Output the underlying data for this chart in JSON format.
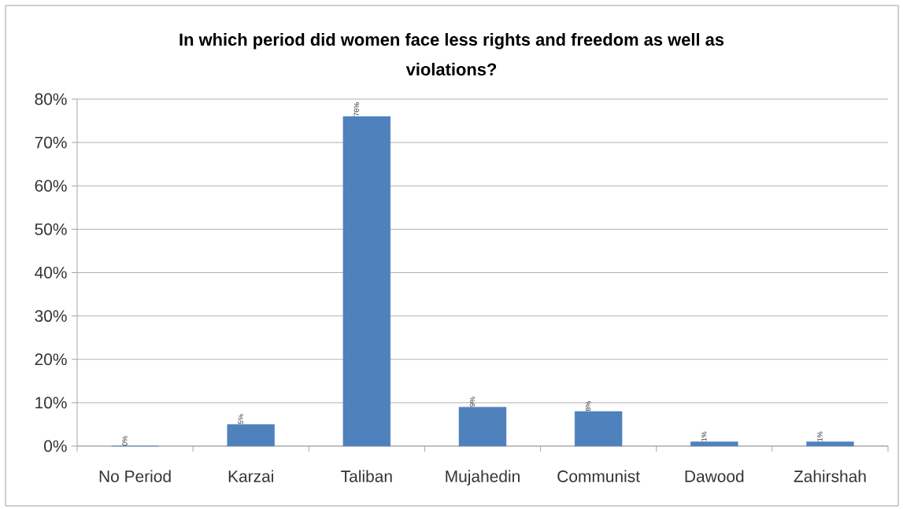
{
  "chart_data": {
    "type": "bar",
    "title": "In which period did women face less rights and freedom as well as violations?",
    "categories": [
      "No Period",
      "Karzai",
      "Taliban",
      "Mujahedin",
      "Communist",
      "Dawood",
      "Zahirshah"
    ],
    "values": [
      0,
      5,
      76,
      9,
      8,
      1,
      1
    ],
    "value_labels": [
      "0%",
      "5%",
      "76%",
      "9%",
      "8%",
      "1%",
      "1%"
    ],
    "color": "#4f81bd",
    "ylim": [
      0,
      80
    ],
    "yticks": [
      {
        "value": 0,
        "label": "0%"
      },
      {
        "value": 10,
        "label": "10%"
      },
      {
        "value": 20,
        "label": "20%"
      },
      {
        "value": 30,
        "label": "30%"
      },
      {
        "value": 40,
        "label": "40%"
      },
      {
        "value": 50,
        "label": "50%"
      },
      {
        "value": 60,
        "label": "60%"
      },
      {
        "value": 70,
        "label": "70%"
      },
      {
        "value": 80,
        "label": "80%"
      }
    ],
    "grid": "y"
  }
}
